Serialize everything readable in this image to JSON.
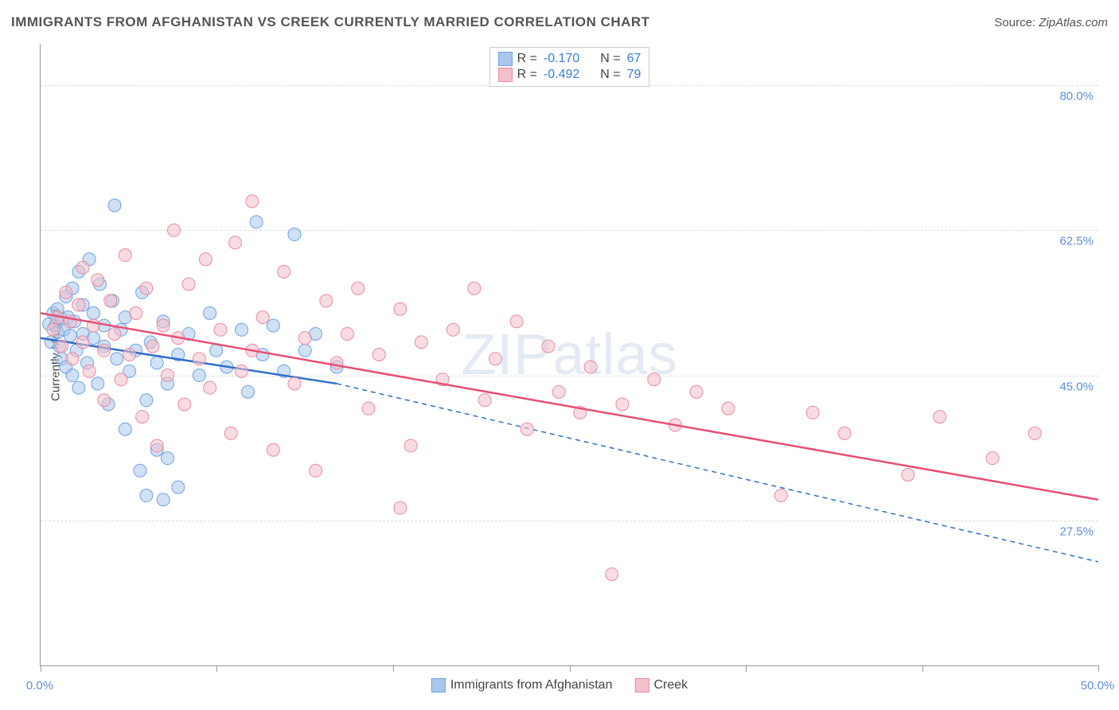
{
  "title": "IMMIGRANTS FROM AFGHANISTAN VS CREEK CURRENTLY MARRIED CORRELATION CHART",
  "source_label": "Source:",
  "source_name": "ZipAtlas.com",
  "ylabel": "Currently Married",
  "watermark": "ZIPatlas",
  "chart": {
    "type": "scatter-with-regression",
    "xlim": [
      0,
      50
    ],
    "ylim": [
      10,
      85
    ],
    "x_ticks": [
      0,
      8.33,
      16.67,
      25,
      33.33,
      41.67,
      50
    ],
    "x_tick_labels_shown": {
      "0": "0.0%",
      "50": "50.0%"
    },
    "y_gridlines": [
      27.5,
      45.0,
      62.5,
      80.0
    ],
    "y_tick_labels": [
      "27.5%",
      "45.0%",
      "62.5%",
      "80.0%"
    ],
    "background_color": "#ffffff",
    "grid_color": "#dddddd",
    "axis_color": "#999999",
    "marker_radius": 8,
    "marker_opacity": 0.55,
    "series": [
      {
        "name": "Immigrants from Afghanistan",
        "color_fill": "#a9c7ec",
        "color_stroke": "#6fa3e0",
        "line_color": "#2f6fc9",
        "R": "-0.170",
        "N": "67",
        "trend": {
          "x1": 0,
          "y1": 49.5,
          "x2_solid": 14,
          "y2_solid": 44.0,
          "x2_dash": 50,
          "y2_dash": 22.5
        },
        "points": [
          [
            0.4,
            51.2
          ],
          [
            0.5,
            49.0
          ],
          [
            0.6,
            52.5
          ],
          [
            0.7,
            51.0
          ],
          [
            0.8,
            50.2
          ],
          [
            0.8,
            53.0
          ],
          [
            0.9,
            48.5
          ],
          [
            1.0,
            51.8
          ],
          [
            1.0,
            47.0
          ],
          [
            1.1,
            50.5
          ],
          [
            1.2,
            54.5
          ],
          [
            1.2,
            46.0
          ],
          [
            1.3,
            52.0
          ],
          [
            1.4,
            49.8
          ],
          [
            1.5,
            55.5
          ],
          [
            1.5,
            45.0
          ],
          [
            1.6,
            51.5
          ],
          [
            1.7,
            48.0
          ],
          [
            1.8,
            57.5
          ],
          [
            1.8,
            43.5
          ],
          [
            2.0,
            50.0
          ],
          [
            2.0,
            53.5
          ],
          [
            2.2,
            46.5
          ],
          [
            2.3,
            59.0
          ],
          [
            2.5,
            49.5
          ],
          [
            2.5,
            52.5
          ],
          [
            2.7,
            44.0
          ],
          [
            2.8,
            56.0
          ],
          [
            3.0,
            48.5
          ],
          [
            3.0,
            51.0
          ],
          [
            3.2,
            41.5
          ],
          [
            3.4,
            54.0
          ],
          [
            3.5,
            65.5
          ],
          [
            3.6,
            47.0
          ],
          [
            3.8,
            50.5
          ],
          [
            4.0,
            38.5
          ],
          [
            4.0,
            52.0
          ],
          [
            4.2,
            45.5
          ],
          [
            4.5,
            48.0
          ],
          [
            4.7,
            33.5
          ],
          [
            4.8,
            55.0
          ],
          [
            5.0,
            42.0
          ],
          [
            5.0,
            30.5
          ],
          [
            5.2,
            49.0
          ],
          [
            5.5,
            46.5
          ],
          [
            5.5,
            36.0
          ],
          [
            5.8,
            51.5
          ],
          [
            5.8,
            30.0
          ],
          [
            6.0,
            44.0
          ],
          [
            6.0,
            35.0
          ],
          [
            6.5,
            47.5
          ],
          [
            6.5,
            31.5
          ],
          [
            7.0,
            50.0
          ],
          [
            7.5,
            45.0
          ],
          [
            8.0,
            52.5
          ],
          [
            8.3,
            48.0
          ],
          [
            8.8,
            46.0
          ],
          [
            9.5,
            50.5
          ],
          [
            9.8,
            43.0
          ],
          [
            10.2,
            63.5
          ],
          [
            10.5,
            47.5
          ],
          [
            11.0,
            51.0
          ],
          [
            11.5,
            45.5
          ],
          [
            12.0,
            62.0
          ],
          [
            12.5,
            48.0
          ],
          [
            13.0,
            50.0
          ],
          [
            14.0,
            46.0
          ]
        ]
      },
      {
        "name": "Creek",
        "color_fill": "#f4c0cb",
        "color_stroke": "#e88ba1",
        "line_color": "#e94f73",
        "R": "-0.492",
        "N": "79",
        "trend": {
          "x1": 0,
          "y1": 52.5,
          "x2_solid": 50,
          "y2_solid": 30.0,
          "x2_dash": 50,
          "y2_dash": 30.0
        },
        "points": [
          [
            0.6,
            50.5
          ],
          [
            0.8,
            52.0
          ],
          [
            1.0,
            48.5
          ],
          [
            1.2,
            55.0
          ],
          [
            1.4,
            51.5
          ],
          [
            1.5,
            47.0
          ],
          [
            1.8,
            53.5
          ],
          [
            2.0,
            49.0
          ],
          [
            2.0,
            58.0
          ],
          [
            2.3,
            45.5
          ],
          [
            2.5,
            51.0
          ],
          [
            2.7,
            56.5
          ],
          [
            3.0,
            48.0
          ],
          [
            3.0,
            42.0
          ],
          [
            3.3,
            54.0
          ],
          [
            3.5,
            50.0
          ],
          [
            3.8,
            44.5
          ],
          [
            4.0,
            59.5
          ],
          [
            4.2,
            47.5
          ],
          [
            4.5,
            52.5
          ],
          [
            4.8,
            40.0
          ],
          [
            5.0,
            55.5
          ],
          [
            5.3,
            48.5
          ],
          [
            5.5,
            36.5
          ],
          [
            5.8,
            51.0
          ],
          [
            6.0,
            45.0
          ],
          [
            6.3,
            62.5
          ],
          [
            6.5,
            49.5
          ],
          [
            6.8,
            41.5
          ],
          [
            7.0,
            56.0
          ],
          [
            7.5,
            47.0
          ],
          [
            7.8,
            59.0
          ],
          [
            8.0,
            43.5
          ],
          [
            8.5,
            50.5
          ],
          [
            9.0,
            38.0
          ],
          [
            9.2,
            61.0
          ],
          [
            9.5,
            45.5
          ],
          [
            10.0,
            66.0
          ],
          [
            10.0,
            48.0
          ],
          [
            10.5,
            52.0
          ],
          [
            11.0,
            36.0
          ],
          [
            11.5,
            57.5
          ],
          [
            12.0,
            44.0
          ],
          [
            12.5,
            49.5
          ],
          [
            13.0,
            33.5
          ],
          [
            13.5,
            54.0
          ],
          [
            14.0,
            46.5
          ],
          [
            14.5,
            50.0
          ],
          [
            15.0,
            55.5
          ],
          [
            15.5,
            41.0
          ],
          [
            16.0,
            47.5
          ],
          [
            17.0,
            53.0
          ],
          [
            17.0,
            29.0
          ],
          [
            17.5,
            36.5
          ],
          [
            18.0,
            49.0
          ],
          [
            19.0,
            44.5
          ],
          [
            19.5,
            50.5
          ],
          [
            20.5,
            55.5
          ],
          [
            21.0,
            42.0
          ],
          [
            21.5,
            47.0
          ],
          [
            22.5,
            51.5
          ],
          [
            23.0,
            38.5
          ],
          [
            24.0,
            48.5
          ],
          [
            24.5,
            43.0
          ],
          [
            25.5,
            40.5
          ],
          [
            26.0,
            46.0
          ],
          [
            27.0,
            21.0
          ],
          [
            27.5,
            41.5
          ],
          [
            29.0,
            44.5
          ],
          [
            30.0,
            39.0
          ],
          [
            31.0,
            43.0
          ],
          [
            32.5,
            41.0
          ],
          [
            35.0,
            30.5
          ],
          [
            36.5,
            40.5
          ],
          [
            38.0,
            38.0
          ],
          [
            41.0,
            33.0
          ],
          [
            42.5,
            40.0
          ],
          [
            45.0,
            35.0
          ],
          [
            47.0,
            38.0
          ]
        ]
      }
    ]
  },
  "legend_top": {
    "rows": [
      {
        "swatch_fill": "#a9c7ec",
        "swatch_stroke": "#6fa3e0",
        "R_label": "R =",
        "R_val": "-0.170",
        "N_label": "N =",
        "N_val": "67"
      },
      {
        "swatch_fill": "#f4c0cb",
        "swatch_stroke": "#e88ba1",
        "R_label": "R =",
        "R_val": "-0.492",
        "N_label": "N =",
        "N_val": "79"
      }
    ]
  },
  "legend_bottom": {
    "items": [
      {
        "swatch_fill": "#a9c7ec",
        "swatch_stroke": "#6fa3e0",
        "label": "Immigrants from Afghanistan"
      },
      {
        "swatch_fill": "#f4c0cb",
        "swatch_stroke": "#e88ba1",
        "label": "Creek"
      }
    ]
  }
}
